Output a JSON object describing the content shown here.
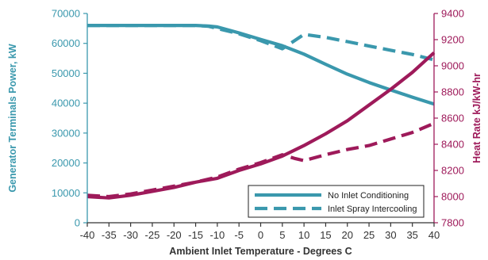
{
  "chart_data": {
    "type": "line",
    "xlabel": "Ambient Inlet Temperature - Degrees C",
    "ylabel_left": "Generator Terminals Power, kW",
    "ylabel_right": "Heat Rate kJ/kW-hr",
    "x_ticks": [
      -40,
      -35,
      -30,
      -25,
      -20,
      -15,
      -10,
      -5,
      0,
      5,
      10,
      15,
      20,
      25,
      30,
      35,
      40
    ],
    "xlim": [
      -40,
      40
    ],
    "ylim_left": [
      0,
      70000
    ],
    "y_ticks_left": [
      0,
      10000,
      20000,
      30000,
      40000,
      50000,
      60000,
      70000
    ],
    "ylim_right": [
      7800,
      9400
    ],
    "y_ticks_right": [
      7800,
      8000,
      8200,
      8400,
      8600,
      8800,
      9000,
      9200,
      9400
    ],
    "colors": {
      "power": "#3a98ad",
      "heat_rate": "#9e1a5a",
      "left_axis": "#3a98ad",
      "right_axis": "#9e1a5a",
      "bottom_axis": "#333333"
    },
    "grid": false,
    "legend": {
      "position": "bottom-right",
      "entries": [
        {
          "label": "No Inlet Conditioning",
          "style": "solid"
        },
        {
          "label": "Inlet Spray Intercooling",
          "style": "dashed"
        }
      ]
    },
    "series": [
      {
        "metric": "power",
        "axis": "left",
        "style": "solid",
        "x": [
          -40,
          -35,
          -30,
          -25,
          -20,
          -15,
          -12,
          -10,
          -5,
          0,
          5,
          10,
          15,
          20,
          25,
          30,
          35,
          40
        ],
        "y": [
          66000,
          66000,
          66000,
          66000,
          66000,
          66000,
          65800,
          65500,
          63500,
          61300,
          59200,
          56400,
          53000,
          49700,
          46900,
          44400,
          42000,
          39700
        ]
      },
      {
        "metric": "power",
        "axis": "left",
        "style": "dashed",
        "x": [
          -40,
          -35,
          -30,
          -25,
          -20,
          -15,
          -12,
          -10,
          -5,
          0,
          5,
          10,
          15,
          20,
          25,
          30,
          35,
          40
        ],
        "y": [
          66000,
          66000,
          66000,
          66000,
          66000,
          66000,
          65700,
          65000,
          63200,
          60900,
          58200,
          63000,
          62000,
          60600,
          59100,
          57700,
          56300,
          54500
        ]
      },
      {
        "metric": "heat_rate",
        "axis": "right",
        "style": "solid",
        "x": [
          -40,
          -35,
          -30,
          -25,
          -20,
          -15,
          -10,
          -5,
          0,
          5,
          10,
          15,
          20,
          25,
          30,
          35,
          40
        ],
        "y": [
          8000,
          7990,
          8010,
          8040,
          8070,
          8110,
          8140,
          8200,
          8250,
          8310,
          8390,
          8480,
          8580,
          8700,
          8820,
          8950,
          9100
        ]
      },
      {
        "metric": "heat_rate",
        "axis": "right",
        "style": "dashed",
        "x": [
          -40,
          -35,
          -30,
          -25,
          -20,
          -15,
          -10,
          -5,
          0,
          5,
          8,
          10,
          15,
          20,
          25,
          30,
          35,
          40
        ],
        "y": [
          8010,
          8000,
          8020,
          8050,
          8080,
          8110,
          8150,
          8210,
          8260,
          8320,
          8290,
          8275,
          8320,
          8360,
          8390,
          8440,
          8490,
          8560
        ]
      }
    ]
  }
}
